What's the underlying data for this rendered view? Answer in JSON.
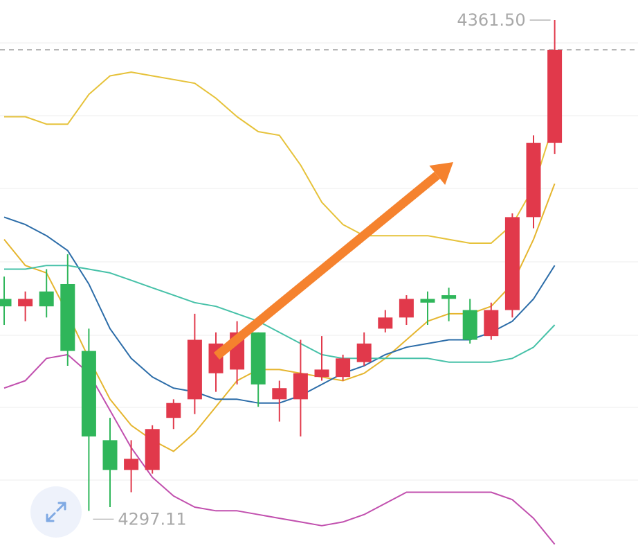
{
  "chart_data": {
    "type": "candlestick",
    "title": "",
    "xlabel": "",
    "ylabel": "",
    "ylim": [
      4290.5,
      4364.2
    ],
    "grid": true,
    "annotations": {
      "high_label": "4361.50",
      "low_label": "4297.11",
      "trend_arrow": "up"
    },
    "candles": [
      {
        "open": 4324.0,
        "high": 4327.0,
        "low": 4320.5,
        "close": 4323.0
      },
      {
        "open": 4323.0,
        "high": 4325.0,
        "low": 4321.0,
        "close": 4324.0
      },
      {
        "open": 4325.0,
        "high": 4328.0,
        "low": 4321.5,
        "close": 4323.0
      },
      {
        "open": 4326.0,
        "high": 4330.0,
        "low": 4315.0,
        "close": 4317.0
      },
      {
        "open": 4317.0,
        "high": 4320.0,
        "low": 4295.5,
        "close": 4305.5
      },
      {
        "open": 4305.0,
        "high": 4308.0,
        "low": 4296.0,
        "close": 4301.0
      },
      {
        "open": 4301.0,
        "high": 4305.0,
        "low": 4298.0,
        "close": 4302.5
      },
      {
        "open": 4301.0,
        "high": 4307.0,
        "low": 4300.5,
        "close": 4306.5
      },
      {
        "open": 4308.0,
        "high": 4310.5,
        "low": 4306.5,
        "close": 4310.0
      },
      {
        "open": 4310.5,
        "high": 4322.0,
        "low": 4308.5,
        "close": 4318.5
      },
      {
        "open": 4314.0,
        "high": 4319.5,
        "low": 4311.5,
        "close": 4318.0
      },
      {
        "open": 4314.5,
        "high": 4321.0,
        "low": 4312.5,
        "close": 4319.5
      },
      {
        "open": 4319.5,
        "high": 4319.5,
        "low": 4309.5,
        "close": 4312.5
      },
      {
        "open": 4310.5,
        "high": 4313.0,
        "low": 4307.5,
        "close": 4312.0
      },
      {
        "open": 4310.5,
        "high": 4318.5,
        "low": 4305.5,
        "close": 4314.0
      },
      {
        "open": 4313.5,
        "high": 4319.0,
        "low": 4313.0,
        "close": 4314.5
      },
      {
        "open": 4313.5,
        "high": 4316.5,
        "low": 4313.0,
        "close": 4316.0
      },
      {
        "open": 4315.5,
        "high": 4319.5,
        "low": 4315.0,
        "close": 4318.0
      },
      {
        "open": 4320.0,
        "high": 4322.5,
        "low": 4319.5,
        "close": 4321.5
      },
      {
        "open": 4321.5,
        "high": 4324.5,
        "low": 4320.5,
        "close": 4324.0
      },
      {
        "open": 4324.0,
        "high": 4325.0,
        "low": 4320.5,
        "close": 4323.5
      },
      {
        "open": 4324.5,
        "high": 4325.5,
        "low": 4321.0,
        "close": 4324.0
      },
      {
        "open": 4322.5,
        "high": 4324.0,
        "low": 4318.0,
        "close": 4318.5
      },
      {
        "open": 4319.0,
        "high": 4323.5,
        "low": 4318.5,
        "close": 4322.5
      },
      {
        "open": 4322.5,
        "high": 4335.5,
        "low": 4321.5,
        "close": 4335.0
      },
      {
        "open": 4335.0,
        "high": 4346.0,
        "low": 4333.5,
        "close": 4345.0
      },
      {
        "open": 4345.0,
        "high": 4361.5,
        "low": 4343.5,
        "close": 4357.5
      }
    ],
    "series": [
      {
        "color": "#e5b52e",
        "values": [
          4332.0,
          4328.5,
          4327.5,
          4322.0,
          4316.0,
          4310.5,
          4307.0,
          4305.0,
          4303.5,
          4306.0,
          4309.5,
          4313.0,
          4314.5,
          4314.5,
          4314.0,
          4313.5,
          4313.0,
          4314.0,
          4316.0,
          4318.5,
          4321.0,
          4322.0,
          4322.0,
          4323.0,
          4326.0,
          4332.0,
          4339.5
        ]
      },
      {
        "color": "#2b6ca8",
        "values": [
          4335.0,
          4334.0,
          4332.5,
          4330.5,
          4326.0,
          4320.0,
          4316.0,
          4313.5,
          4312.0,
          4311.5,
          4310.5,
          4310.5,
          4310.0,
          4310.0,
          4311.0,
          4312.5,
          4314.0,
          4315.0,
          4316.5,
          4317.5,
          4318.0,
          4318.5,
          4318.5,
          4319.5,
          4321.0,
          4324.0,
          4328.5
        ]
      },
      {
        "color": "#46c1a8",
        "values": [
          4328.0,
          4328.0,
          4328.5,
          4328.5,
          4328.0,
          4327.5,
          4326.5,
          4325.5,
          4324.5,
          4323.5,
          4323.0,
          4322.0,
          4321.0,
          4319.5,
          4318.0,
          4316.5,
          4316.0,
          4316.0,
          4316.0,
          4316.0,
          4316.0,
          4315.5,
          4315.5,
          4315.5,
          4316.0,
          4317.5,
          4320.5
        ]
      },
      {
        "color": "#e6c23a",
        "values": [
          4348.5,
          4348.5,
          4347.5,
          4347.5,
          4351.5,
          4354.0,
          4354.5,
          4354.0,
          4353.5,
          4353.0,
          4351.0,
          4348.5,
          4346.5,
          4346.0,
          4342.0,
          4337.0,
          4334.0,
          4332.5,
          4332.5,
          4332.5,
          4332.5,
          4332.0,
          4331.5,
          4331.5,
          4334.0,
          4339.0,
          4348.0
        ]
      },
      {
        "color": "#c14fae",
        "values": [
          4312.0,
          4313.0,
          4316.0,
          4316.5,
          4314.0,
          4309.0,
          4304.0,
          4300.0,
          4297.5,
          4296.0,
          4295.5,
          4295.5,
          4295.0,
          4294.5,
          4294.0,
          4293.5,
          4294.0,
          4295.0,
          4296.5,
          4298.0,
          4298.0,
          4298.0,
          4298.0,
          4298.0,
          4297.0,
          4294.5,
          4291.0
        ]
      }
    ]
  },
  "colors": {
    "up": "#e1394b",
    "down": "#2fb65a",
    "arrow": "#f5822e",
    "grid": "#eeeeee",
    "dashed": "#a8a8a8",
    "label": "#a8a8a8"
  },
  "ui": {
    "expand_icon": "expand-arrows-icon"
  }
}
